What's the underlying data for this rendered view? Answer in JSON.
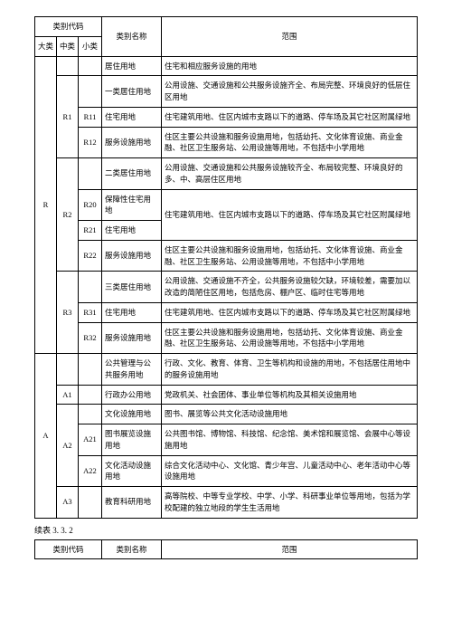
{
  "header": {
    "code_group": "类别代码",
    "col_major": "大类",
    "col_mid": "中类",
    "col_minor": "小类",
    "col_name": "类别名称",
    "col_scope": "范围"
  },
  "rows": [
    {
      "major": "R",
      "mid": "",
      "minor": "",
      "name": "居住用地",
      "scope": "住宅和相应服务设施的用地"
    },
    {
      "major": "",
      "mid": "R1",
      "minor": "",
      "name": "一类居住用地",
      "scope": "公用设施、交通设施和公共服务设施齐全、布局完整、环境良好的低层住区用地"
    },
    {
      "major": "",
      "mid": "",
      "minor": "R11",
      "name": "住宅用地",
      "scope": "住宅建筑用地、住区内城市支路以下的道路、停车场及其它社区附属绿地"
    },
    {
      "major": "",
      "mid": "",
      "minor": "R12",
      "name": "服务设施用地",
      "scope": "住区主要公共设施和服务设施用地，包括幼托、文化体育设施、商业金融、社区卫生服务站、公用设施等用地，不包括中小学用地"
    },
    {
      "major": "",
      "mid": "R2",
      "minor": "",
      "name": "二类居住用地",
      "scope": "公用设施、交通设施和公共服务设施较齐全、布局较完整、环境良好的多、中、高层住区用地"
    },
    {
      "major": "",
      "mid": "",
      "minor": "R20",
      "name": "保障性住宅用地",
      "scope": "住宅建筑用地、住区内城市支路以下的道路、停车场及其它社区附属绿地",
      "span_scope": 2
    },
    {
      "major": "",
      "mid": "",
      "minor": "R21",
      "name": "住宅用地",
      "scope": ""
    },
    {
      "major": "",
      "mid": "",
      "minor": "R22",
      "name": "服务设施用地",
      "scope": "住区主要公共设施和服务设施用地，包括幼托、文化体育设施、商业金融、社区卫生服务站、公用设施等用地，不包括中小学用地"
    },
    {
      "major": "",
      "mid": "R3",
      "minor": "",
      "name": "三类居住用地",
      "scope": "公用设施、交通设施不齐全，公共服务设施较欠缺，环境较差，需要加以改造的简陋住区用地，包括危房、棚户区、临时住宅等用地"
    },
    {
      "major": "",
      "mid": "",
      "minor": "R31",
      "name": "住宅用地",
      "scope": "住宅建筑用地、住区内城市支路以下的道路、停车场及其它社区附属绿地"
    },
    {
      "major": "",
      "mid": "",
      "minor": "R32",
      "name": "服务设施用地",
      "scope": "住区主要公共设施和服务设施用地，包括幼托、文化体育设施、商业金融、社区卫生服务站、公用设施等用地，不包括中小学用地"
    },
    {
      "major": "A",
      "mid": "",
      "minor": "",
      "name": "公共管理与公共服务用地",
      "scope": "行政、文化、教育、体育、卫生等机构和设施的用地，不包括居住用地中的服务设施用地"
    },
    {
      "major": "",
      "mid": "A1",
      "minor": "",
      "name": "行政办公用地",
      "scope": "党政机关、社会团体、事业单位等机构及其相关设施用地"
    },
    {
      "major": "",
      "mid": "A2",
      "minor": "",
      "name": "文化设施用地",
      "scope": "图书、展览等公共文化活动设施用地"
    },
    {
      "major": "",
      "mid": "",
      "minor": "A21",
      "name": "图书展览设施用地",
      "scope": "公共图书馆、博物馆、科技馆、纪念馆、美术馆和展览馆、会展中心等设施用地"
    },
    {
      "major": "",
      "mid": "",
      "minor": "A22",
      "name": "文化活动设施用地",
      "scope": "综合文化活动中心、文化馆、青少年宫、儿童活动中心、老年活动中心等设施用地"
    },
    {
      "major": "",
      "mid": "A3",
      "minor": "",
      "name": "教育科研用地",
      "scope": "高等院校、中等专业学校、中学、小学、科研事业单位等用地，包括为学校配建的独立地段的学生生活用地"
    }
  ],
  "caption": "续表 3. 3. 2",
  "footer_header": {
    "code_group": "类别代码",
    "col_name": "类别名称",
    "col_scope": "范围"
  }
}
